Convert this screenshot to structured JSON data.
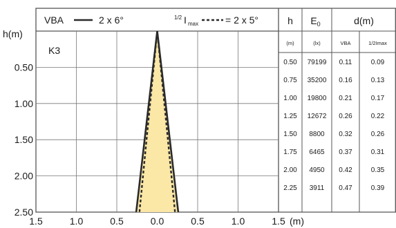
{
  "chart_data": {
    "type": "area",
    "title": "",
    "xlabel": "(m)",
    "ylabel": "h(m)",
    "xlim": [
      -1.5,
      1.5
    ],
    "ylim": [
      0.0,
      2.5
    ],
    "x_ticks": [
      -1.5,
      -1.0,
      -0.5,
      0.0,
      0.5,
      1.0,
      1.5
    ],
    "x_tick_labels": [
      "1.5",
      "1.0",
      "0.5",
      "0.0",
      "0.5",
      "1.0",
      "1.5"
    ],
    "y_ticks": [
      0.5,
      1.0,
      1.5,
      2.0,
      2.5
    ],
    "y_tick_labels": [
      "0.50",
      "1.00",
      "1.50",
      "2.00",
      "2.50"
    ],
    "grid": true,
    "panel_label": "K3",
    "legend": {
      "vba_label": "VBA",
      "vba_value": "2 x 6°",
      "half_prefix": "1/2",
      "half_sub": "max",
      "half_value": "= 2 x 5°"
    },
    "series": [
      {
        "name": "VBA",
        "style": "solid",
        "color": "#2a2a2a",
        "points": [
          [
            0.0,
            0.0
          ],
          [
            -0.26,
            2.5
          ],
          [
            0.26,
            2.5
          ]
        ]
      },
      {
        "name": "½Imax",
        "style": "dashed",
        "color": "#2a2a2a",
        "points": [
          [
            0.0,
            0.0
          ],
          [
            -0.22,
            2.5
          ],
          [
            0.22,
            2.5
          ]
        ]
      }
    ],
    "fill_color": "#fbe7a6"
  },
  "table": {
    "col_h": "h",
    "col_e": "E0",
    "col_e_main": "E",
    "col_e_sub": "0",
    "col_d": "d(m)",
    "unit_h": "(m)",
    "unit_e": "(lx)",
    "sub_vba": "VBA",
    "sub_half": "1/2Imax",
    "rows": [
      {
        "h": "0.50",
        "e": "79199",
        "vba": "0.11",
        "half": "0.09"
      },
      {
        "h": "0.75",
        "e": "35200",
        "vba": "0.16",
        "half": "0.13"
      },
      {
        "h": "1.00",
        "e": "19800",
        "vba": "0.21",
        "half": "0.17"
      },
      {
        "h": "1.25",
        "e": "12672",
        "vba": "0.26",
        "half": "0.22"
      },
      {
        "h": "1.50",
        "e": "8800",
        "vba": "0.32",
        "half": "0.26"
      },
      {
        "h": "1.75",
        "e": "6465",
        "vba": "0.37",
        "half": "0.31"
      },
      {
        "h": "2.00",
        "e": "4950",
        "vba": "0.42",
        "half": "0.35"
      },
      {
        "h": "2.25",
        "e": "3911",
        "vba": "0.47",
        "half": "0.39"
      }
    ]
  }
}
